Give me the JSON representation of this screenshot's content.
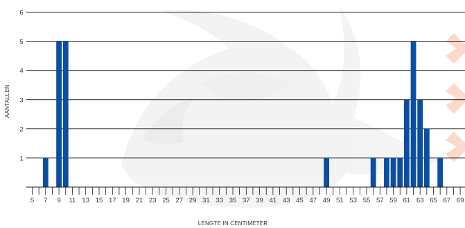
{
  "chart_data": {
    "type": "bar",
    "title": "",
    "xlabel": "LENGTE IN CENTIMETER",
    "ylabel": "AANTALLEN",
    "ylim": [
      0,
      6
    ],
    "yticks": [
      "1",
      "2",
      "3",
      "4",
      "5",
      "6"
    ],
    "xlim": [
      4,
      70
    ],
    "xticks": [
      "5",
      "7",
      "9",
      "11",
      "13",
      "15",
      "17",
      "19",
      "21",
      "23",
      "25",
      "27",
      "29",
      "31",
      "33",
      "35",
      "37",
      "39",
      "41",
      "43",
      "45",
      "47",
      "49",
      "51",
      "53",
      "55",
      "57",
      "59",
      "61",
      "63",
      "65",
      "67",
      "69"
    ],
    "grid": true,
    "bar_color": "#0b4ea2",
    "x": [
      7,
      9,
      10,
      49,
      56,
      58,
      59,
      60,
      61,
      62,
      63,
      64,
      66
    ],
    "values": [
      1,
      5,
      5,
      1,
      1,
      1,
      1,
      1,
      3,
      5,
      3,
      2,
      1
    ]
  }
}
